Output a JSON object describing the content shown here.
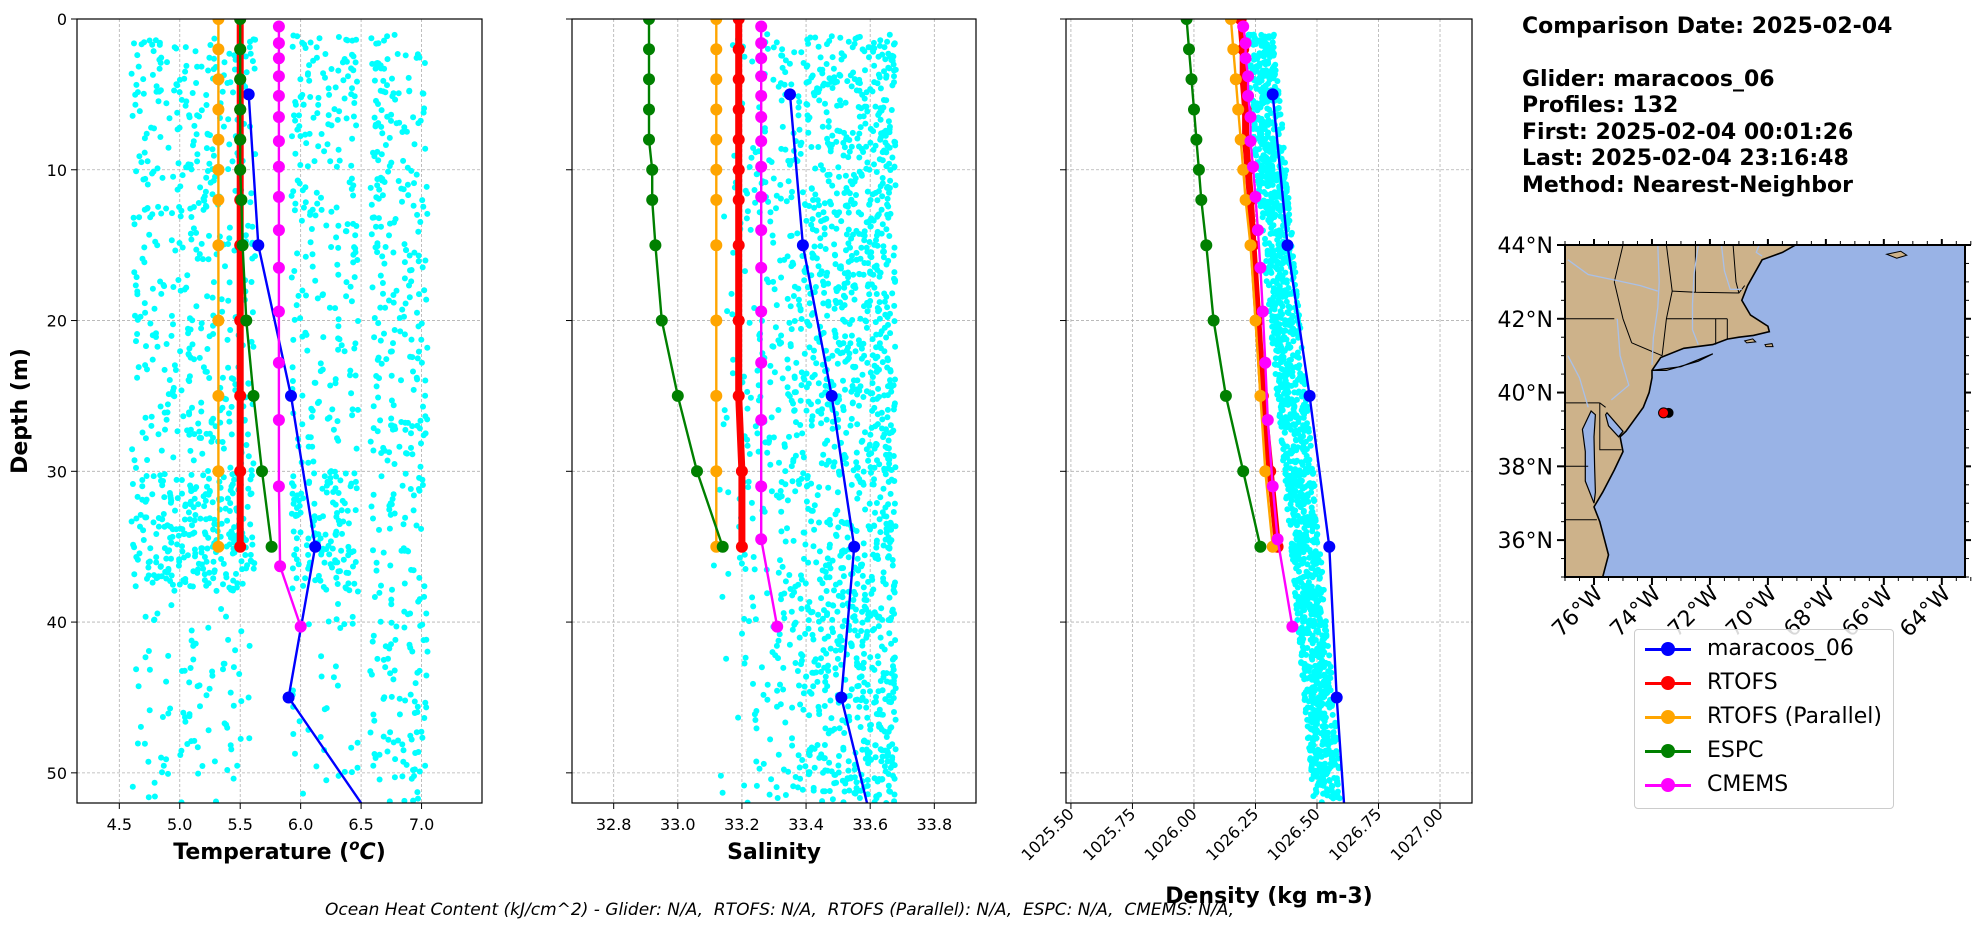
{
  "info": {
    "comparison_date": "Comparison Date: 2025-02-04",
    "glider": "Glider: maracoos_06",
    "profiles": "Profiles: 132",
    "first": "First: 2025-02-04 00:01:26",
    "last": "Last: 2025-02-04 23:16:48",
    "method": "Method: Nearest-Neighbor"
  },
  "footer": "Ocean Heat Content (kJ/cm^2) - Glider: N/A,  RTOFS: N/A,  RTOFS (Parallel): N/A,  ESPC: N/A,  CMEMS: N/A,",
  "colors": {
    "scatter": "#00ffff",
    "glider": "#0000ff",
    "rtofs": "#ff0000",
    "rtofs_parallel": "#ffa500",
    "espc": "#008000",
    "cmems": "#ff00ff",
    "land": "#cdb28a",
    "ocean": "#99b3e6",
    "rivers": "#a9c0e8"
  },
  "legend": [
    {
      "label": "maracoos_06",
      "color": "#0000ff"
    },
    {
      "label": "RTOFS",
      "color": "#ff0000"
    },
    {
      "label": "RTOFS (Parallel)",
      "color": "#ffa500"
    },
    {
      "label": "ESPC",
      "color": "#008000"
    },
    {
      "label": "CMEMS",
      "color": "#ff00ff"
    }
  ],
  "map": {
    "lat_ticks": [
      "36°N",
      "38°N",
      "40°N",
      "42°N",
      "44°N"
    ],
    "lon_ticks": [
      "76°W",
      "74°W",
      "72°W",
      "70°W",
      "68°W",
      "66°W",
      "64°W"
    ],
    "lat_range": [
      35,
      44
    ],
    "lon_range": [
      -77,
      -63.2
    ],
    "glider_position": {
      "lon": -73.6,
      "lat": 39.45
    }
  },
  "chart_data": [
    {
      "type": "line",
      "xlabel": "Temperature (°C)",
      "ylabel": "Depth (m)",
      "xlim": [
        4.15,
        7.5
      ],
      "ylim": [
        52,
        0
      ],
      "x_ticks": [
        4.5,
        5.0,
        5.5,
        6.0,
        6.5,
        7.0
      ],
      "y_ticks": [
        0,
        10,
        20,
        30,
        40,
        50
      ],
      "grid": true,
      "scatter": {
        "x_range": [
          4.6,
          7.05
        ],
        "depth_range": [
          1,
          52
        ],
        "description_value_clusters": [
          4.85,
          5.35,
          6.2,
          6.85
        ]
      },
      "series": [
        {
          "name": "maracoos_06",
          "depth": [
            5,
            15,
            25,
            35,
            45,
            52
          ],
          "values": [
            5.57,
            5.65,
            5.92,
            6.12,
            5.9,
            6.5
          ]
        },
        {
          "name": "RTOFS",
          "depth": [
            0,
            2,
            4,
            6,
            8,
            10,
            12,
            15,
            20,
            25,
            30,
            35
          ],
          "values": [
            5.5,
            5.5,
            5.5,
            5.5,
            5.5,
            5.5,
            5.5,
            5.5,
            5.5,
            5.5,
            5.5,
            5.5
          ]
        },
        {
          "name": "RTOFS (Parallel)",
          "depth": [
            0,
            2,
            4,
            6,
            8,
            10,
            12,
            15,
            20,
            25,
            30,
            35
          ],
          "values": [
            5.32,
            5.32,
            5.32,
            5.32,
            5.32,
            5.32,
            5.32,
            5.32,
            5.32,
            5.32,
            5.32,
            5.32
          ]
        },
        {
          "name": "ESPC",
          "depth": [
            0,
            2,
            4,
            6,
            8,
            10,
            12,
            15,
            20,
            25,
            30,
            35
          ],
          "values": [
            5.5,
            5.5,
            5.5,
            5.5,
            5.5,
            5.5,
            5.51,
            5.52,
            5.55,
            5.61,
            5.68,
            5.76
          ]
        },
        {
          "name": "CMEMS",
          "depth": [
            0.5,
            1.6,
            2.6,
            3.8,
            5.1,
            6.5,
            8.1,
            9.8,
            11.8,
            14,
            16.5,
            19.4,
            22.8,
            26.6,
            31,
            36.3,
            40.3
          ],
          "values": [
            5.82,
            5.82,
            5.82,
            5.82,
            5.82,
            5.82,
            5.82,
            5.82,
            5.82,
            5.82,
            5.82,
            5.82,
            5.82,
            5.82,
            5.82,
            5.83,
            6.0
          ]
        }
      ]
    },
    {
      "type": "line",
      "xlabel": "Salinity",
      "xlim": [
        32.67,
        33.93
      ],
      "ylim": [
        52,
        0
      ],
      "x_ticks": [
        32.8,
        33.0,
        33.2,
        33.4,
        33.6,
        33.8
      ],
      "grid": true,
      "scatter": {
        "x_range": [
          33.1,
          33.68
        ],
        "depth_range": [
          1,
          52
        ]
      },
      "series": [
        {
          "name": "maracoos_06",
          "depth": [
            5,
            15,
            25,
            35,
            45,
            52
          ],
          "values": [
            33.35,
            33.39,
            33.48,
            33.55,
            33.51,
            33.59
          ]
        },
        {
          "name": "RTOFS",
          "depth": [
            0,
            2,
            4,
            6,
            8,
            10,
            12,
            15,
            20,
            25,
            30,
            35
          ],
          "values": [
            33.19,
            33.19,
            33.19,
            33.19,
            33.19,
            33.19,
            33.19,
            33.19,
            33.19,
            33.19,
            33.2,
            33.2
          ]
        },
        {
          "name": "RTOFS (Parallel)",
          "depth": [
            0,
            2,
            4,
            6,
            8,
            10,
            12,
            15,
            20,
            25,
            30,
            35
          ],
          "values": [
            33.12,
            33.12,
            33.12,
            33.12,
            33.12,
            33.12,
            33.12,
            33.12,
            33.12,
            33.12,
            33.12,
            33.12
          ]
        },
        {
          "name": "ESPC",
          "depth": [
            0,
            2,
            4,
            6,
            8,
            10,
            12,
            15,
            20,
            25,
            30,
            35
          ],
          "values": [
            32.91,
            32.91,
            32.91,
            32.91,
            32.91,
            32.92,
            32.92,
            32.93,
            32.95,
            33.0,
            33.06,
            33.14
          ]
        },
        {
          "name": "CMEMS",
          "depth": [
            0.5,
            1.6,
            2.6,
            3.8,
            5.1,
            6.5,
            8.1,
            9.8,
            11.8,
            14,
            16.5,
            19.4,
            22.8,
            26.6,
            31,
            34.5,
            40.3
          ],
          "values": [
            33.26,
            33.26,
            33.26,
            33.26,
            33.26,
            33.26,
            33.26,
            33.26,
            33.26,
            33.26,
            33.26,
            33.26,
            33.26,
            33.26,
            33.26,
            33.26,
            33.31
          ]
        }
      ]
    },
    {
      "type": "line",
      "xlabel": "Density (kg m-3)",
      "xlim": [
        1025.48,
        1027.13
      ],
      "ylim": [
        52,
        0
      ],
      "x_ticks": [
        1025.5,
        1025.75,
        1026.0,
        1026.25,
        1026.5,
        1026.75,
        1027.0
      ],
      "grid": true,
      "scatter": {
        "x_range": [
          1026.2,
          1026.62
        ],
        "depth_range": [
          1,
          52
        ]
      },
      "series": [
        {
          "name": "maracoos_06",
          "depth": [
            5,
            15,
            25,
            35,
            45,
            52
          ],
          "values": [
            1026.32,
            1026.38,
            1026.47,
            1026.55,
            1026.58,
            1026.61
          ]
        },
        {
          "name": "RTOFS",
          "depth": [
            0,
            2,
            4,
            6,
            8,
            10,
            12,
            15,
            20,
            25,
            30,
            35
          ],
          "values": [
            1026.19,
            1026.2,
            1026.2,
            1026.21,
            1026.21,
            1026.22,
            1026.23,
            1026.24,
            1026.26,
            1026.28,
            1026.31,
            1026.34
          ]
        },
        {
          "name": "RTOFS (Parallel)",
          "depth": [
            0,
            2,
            4,
            6,
            8,
            10,
            12,
            15,
            20,
            25,
            30,
            35
          ],
          "values": [
            1026.15,
            1026.16,
            1026.17,
            1026.18,
            1026.19,
            1026.2,
            1026.21,
            1026.23,
            1026.25,
            1026.27,
            1026.29,
            1026.32
          ]
        },
        {
          "name": "ESPC",
          "depth": [
            0,
            2,
            4,
            6,
            8,
            10,
            12,
            15,
            20,
            25,
            30,
            35
          ],
          "values": [
            1025.97,
            1025.98,
            1025.99,
            1026.0,
            1026.01,
            1026.02,
            1026.03,
            1026.05,
            1026.08,
            1026.13,
            1026.2,
            1026.27
          ]
        },
        {
          "name": "CMEMS",
          "depth": [
            0.5,
            1.6,
            2.6,
            3.8,
            5.1,
            6.5,
            8.1,
            9.8,
            11.8,
            14,
            16.5,
            19.4,
            22.8,
            26.6,
            31,
            34.5,
            40.3
          ],
          "values": [
            1026.2,
            1026.21,
            1026.21,
            1026.22,
            1026.22,
            1026.23,
            1026.23,
            1026.24,
            1026.25,
            1026.26,
            1026.27,
            1026.28,
            1026.29,
            1026.3,
            1026.32,
            1026.34,
            1026.4
          ]
        }
      ]
    }
  ]
}
